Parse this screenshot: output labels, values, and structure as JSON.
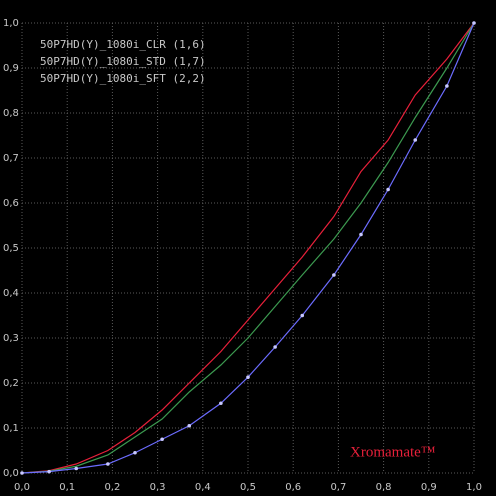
{
  "chart_data": {
    "type": "line",
    "x": [
      0,
      0.06,
      0.12,
      0.19,
      0.25,
      0.31,
      0.37,
      0.44,
      0.5,
      0.56,
      0.62,
      0.69,
      0.75,
      0.81,
      0.87,
      0.94,
      1.0
    ],
    "series": [
      {
        "name": "50P7HD(Y)_1080i_CLR (1,6)",
        "color": "#e8203a",
        "marker": false,
        "values": [
          0,
          0.005,
          0.02,
          0.05,
          0.09,
          0.14,
          0.2,
          0.27,
          0.34,
          0.41,
          0.48,
          0.57,
          0.67,
          0.74,
          0.84,
          0.92,
          1.0
        ]
      },
      {
        "name": "50P7HD(Y)_1080i_STD (1,7)",
        "color": "#3c9a50",
        "marker": false,
        "values": [
          0,
          0.004,
          0.015,
          0.04,
          0.08,
          0.12,
          0.18,
          0.24,
          0.3,
          0.37,
          0.44,
          0.52,
          0.6,
          0.69,
          0.79,
          0.9,
          1.0
        ]
      },
      {
        "name": "50P7HD(Y)_1080i_SFT (2,2)",
        "color": "#6c6cff",
        "marker": true,
        "values": [
          0,
          0.003,
          0.01,
          0.02,
          0.045,
          0.075,
          0.105,
          0.155,
          0.213,
          0.28,
          0.35,
          0.44,
          0.53,
          0.63,
          0.74,
          0.86,
          1.0
        ]
      }
    ],
    "xlim": [
      0,
      1.0
    ],
    "ylim": [
      0,
      1.0
    ],
    "xticks": [
      {
        "value": 0,
        "label": "0,0"
      },
      {
        "value": 0.1,
        "label": "0,1"
      },
      {
        "value": 0.2,
        "label": "0,2"
      },
      {
        "value": 0.3,
        "label": "0,3"
      },
      {
        "value": 0.4,
        "label": "0,4"
      },
      {
        "value": 0.5,
        "label": "0,5"
      },
      {
        "value": 0.6,
        "label": "0,6"
      },
      {
        "value": 0.7,
        "label": "0,7"
      },
      {
        "value": 0.8,
        "label": "0,8"
      },
      {
        "value": 0.9,
        "label": "0,9"
      },
      {
        "value": 1.0,
        "label": "1,0"
      }
    ],
    "yticks": [
      {
        "value": 0,
        "label": "0,0"
      },
      {
        "value": 0.1,
        "label": "0,1"
      },
      {
        "value": 0.2,
        "label": "0,2"
      },
      {
        "value": 0.3,
        "label": "0,3"
      },
      {
        "value": 0.4,
        "label": "0,4"
      },
      {
        "value": 0.5,
        "label": "0,5"
      },
      {
        "value": 0.6,
        "label": "0,6"
      },
      {
        "value": 0.7,
        "label": "0,7"
      },
      {
        "value": 0.8,
        "label": "0,8"
      },
      {
        "value": 0.9,
        "label": "0,9"
      },
      {
        "value": 1.0,
        "label": "1,0"
      }
    ],
    "grid": true,
    "legend": "top-left",
    "annotation": "Xromamate™",
    "annotation_color": "#e8203a"
  }
}
